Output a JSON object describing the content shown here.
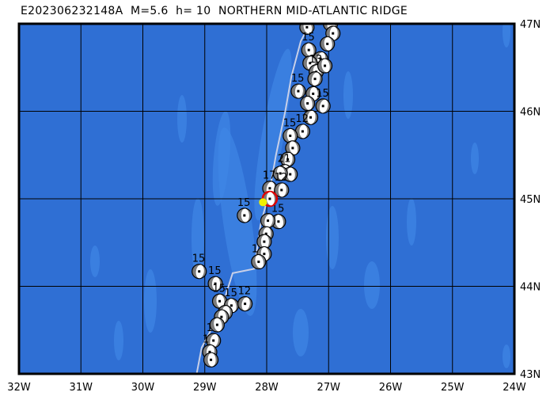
{
  "title": "E202306232148A  M=5.6  h= 10  NORTHERN MID-ATLANTIC RIDGE",
  "map": {
    "lon_range": [
      -32,
      -24
    ],
    "lat_range": [
      43,
      47
    ],
    "ocean_color": "#2f6fd4",
    "bathymetry_light_color": "#3f86e6",
    "plate_boundary_color": "#c8d0e8",
    "lon_ticks": [
      "32W",
      "31W",
      "30W",
      "29W",
      "28W",
      "27W",
      "26W",
      "25W",
      "24W"
    ],
    "lat_ticks": [
      "43N",
      "44N",
      "45N",
      "46N",
      "47N"
    ],
    "main_event": {
      "lon": -27.95,
      "lat": 45.0,
      "color": "#e00000",
      "epicenter_color": "#f0f000",
      "epicenter_lon": -28.06,
      "epicenter_lat": 44.96
    },
    "plate_boundary": [
      [
        -29.35,
        42.93
      ],
      [
        -29.15,
        42.93
      ],
      [
        -29.05,
        43.3
      ],
      [
        -28.75,
        43.7
      ],
      [
        -28.55,
        44.15
      ],
      [
        -28.2,
        44.2
      ],
      [
        -28.1,
        44.7
      ],
      [
        -27.95,
        45.1
      ],
      [
        -27.85,
        45.5
      ],
      [
        -27.7,
        46.0
      ],
      [
        -27.6,
        46.4
      ],
      [
        -27.45,
        46.8
      ],
      [
        -27.3,
        47.0
      ]
    ],
    "events": [
      {
        "lon": -27.35,
        "lat": 46.96,
        "label": ""
      },
      {
        "lon": -26.97,
        "lat": 47.0,
        "label": ""
      },
      {
        "lon": -26.93,
        "lat": 46.89,
        "label": ""
      },
      {
        "lon": -27.02,
        "lat": 46.77,
        "label": ""
      },
      {
        "lon": -27.32,
        "lat": 46.7,
        "label": "15"
      },
      {
        "lon": -27.13,
        "lat": 46.6,
        "label": ""
      },
      {
        "lon": -27.3,
        "lat": 46.55,
        "label": ""
      },
      {
        "lon": -27.2,
        "lat": 46.45,
        "label": "13"
      },
      {
        "lon": -27.06,
        "lat": 46.52,
        "label": ""
      },
      {
        "lon": -27.22,
        "lat": 46.37,
        "label": ""
      },
      {
        "lon": -27.49,
        "lat": 46.23,
        "label": "15"
      },
      {
        "lon": -27.25,
        "lat": 46.2,
        "label": ""
      },
      {
        "lon": -27.34,
        "lat": 46.09,
        "label": ""
      },
      {
        "lon": -27.09,
        "lat": 46.06,
        "label": "15"
      },
      {
        "lon": -27.29,
        "lat": 45.93,
        "label": ""
      },
      {
        "lon": -27.42,
        "lat": 45.77,
        "label": "12"
      },
      {
        "lon": -27.62,
        "lat": 45.72,
        "label": "15"
      },
      {
        "lon": -27.58,
        "lat": 45.58,
        "label": ""
      },
      {
        "lon": -27.66,
        "lat": 45.45,
        "label": ""
      },
      {
        "lon": -27.71,
        "lat": 45.31,
        "label": "21"
      },
      {
        "lon": -27.62,
        "lat": 45.28,
        "label": ""
      },
      {
        "lon": -27.78,
        "lat": 45.29,
        "label": ""
      },
      {
        "lon": -27.95,
        "lat": 45.12,
        "label": "17"
      },
      {
        "lon": -27.76,
        "lat": 45.1,
        "label": "12"
      },
      {
        "lon": -28.36,
        "lat": 44.81,
        "label": "15"
      },
      {
        "lon": -27.81,
        "lat": 44.74,
        "label": "15"
      },
      {
        "lon": -27.98,
        "lat": 44.75,
        "label": ""
      },
      {
        "lon": -28.01,
        "lat": 44.6,
        "label": ""
      },
      {
        "lon": -28.04,
        "lat": 44.51,
        "label": ""
      },
      {
        "lon": -28.04,
        "lat": 44.37,
        "label": ""
      },
      {
        "lon": -28.13,
        "lat": 44.28,
        "label": "1"
      },
      {
        "lon": -29.09,
        "lat": 44.17,
        "label": "15"
      },
      {
        "lon": -28.83,
        "lat": 44.03,
        "label": "15"
      },
      {
        "lon": -28.76,
        "lat": 43.83,
        "label": "15"
      },
      {
        "lon": -28.57,
        "lat": 43.78,
        "label": "15"
      },
      {
        "lon": -28.35,
        "lat": 43.8,
        "label": "12"
      },
      {
        "lon": -28.67,
        "lat": 43.7,
        "label": ""
      },
      {
        "lon": -28.73,
        "lat": 43.65,
        "label": ""
      },
      {
        "lon": -28.8,
        "lat": 43.56,
        "label": ""
      },
      {
        "lon": -28.86,
        "lat": 43.38,
        "label": "1"
      },
      {
        "lon": -28.92,
        "lat": 43.25,
        "label": "1"
      },
      {
        "lon": -28.9,
        "lat": 43.16,
        "label": ""
      }
    ]
  }
}
